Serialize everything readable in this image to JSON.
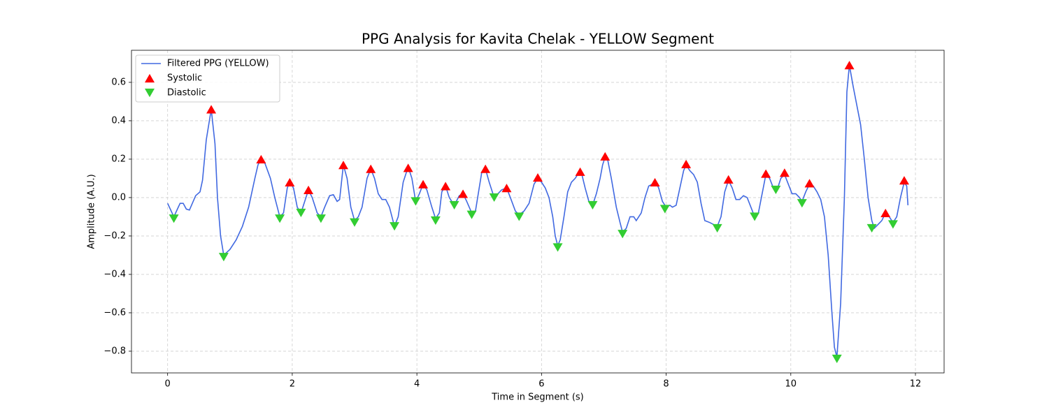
{
  "chart_data": {
    "type": "line",
    "title": "PPG Analysis for Kavita Chelak - YELLOW Segment",
    "xlabel": "Time in Segment (s)",
    "ylabel": "Amplitude (A.U.)",
    "xlim": [
      -0.58,
      12.46
    ],
    "ylim": [
      -0.913,
      0.767
    ],
    "xticks": [
      0,
      2,
      4,
      6,
      8,
      10,
      12
    ],
    "yticks": [
      {
        "value": -0.8,
        "label": "−0.8"
      },
      {
        "value": -0.6,
        "label": "−0.6"
      },
      {
        "value": -0.4,
        "label": "−0.4"
      },
      {
        "value": -0.2,
        "label": "−0.2"
      },
      {
        "value": 0,
        "label": "0.0"
      },
      0.2,
      0.4,
      0.6
    ],
    "grid": true,
    "legend": "upper left",
    "series": [
      {
        "name": "Filtered PPG (YELLOW)",
        "type": "line",
        "color": "#4169e1",
        "x": [
          0,
          0.1,
          0.2,
          0.25,
          0.3,
          0.35,
          0.45,
          0.52,
          0.56,
          0.62,
          0.7,
          0.76,
          0.8,
          0.85,
          0.9,
          1.0,
          1.1,
          1.2,
          1.3,
          1.4,
          1.45,
          1.5,
          1.56,
          1.65,
          1.72,
          1.8,
          1.86,
          1.92,
          1.96,
          2.02,
          2.08,
          2.14,
          2.2,
          2.26,
          2.32,
          2.4,
          2.46,
          2.52,
          2.6,
          2.66,
          2.72,
          2.76,
          2.82,
          2.88,
          2.94,
          3.0,
          3.06,
          3.12,
          3.2,
          3.26,
          3.32,
          3.38,
          3.44,
          3.5,
          3.56,
          3.64,
          3.7,
          3.78,
          3.86,
          3.92,
          3.98,
          4.04,
          4.1,
          4.16,
          4.24,
          4.3,
          4.36,
          4.4,
          4.46,
          4.52,
          4.6,
          4.68,
          4.74,
          4.8,
          4.88,
          4.94,
          5.0,
          5.04,
          5.1,
          5.16,
          5.24,
          5.3,
          5.36,
          5.44,
          5.5,
          5.58,
          5.64,
          5.72,
          5.8,
          5.88,
          5.94,
          6.0,
          6.06,
          6.12,
          6.18,
          6.22,
          6.26,
          6.3,
          6.36,
          6.42,
          6.48,
          6.54,
          6.6,
          6.64,
          6.7,
          6.76,
          6.82,
          6.88,
          6.94,
          6.98,
          7.02,
          7.06,
          7.12,
          7.2,
          7.26,
          7.3,
          7.36,
          7.42,
          7.48,
          7.52,
          7.6,
          7.66,
          7.72,
          7.78,
          7.84,
          7.88,
          7.94,
          8.0,
          8.06,
          8.1,
          8.16,
          8.22,
          8.28,
          8.32,
          8.38,
          8.44,
          8.5,
          8.56,
          8.62,
          8.7,
          8.76,
          8.82,
          8.88,
          8.94,
          9.0,
          9.06,
          9.12,
          9.18,
          9.24,
          9.3,
          9.36,
          9.42,
          9.48,
          9.54,
          9.6,
          9.66,
          9.72,
          9.78,
          9.84,
          9.9,
          9.96,
          10.02,
          10.08,
          10.14,
          10.18,
          10.24,
          10.3,
          10.36,
          10.42,
          10.48,
          10.54,
          10.6,
          10.66,
          10.7,
          10.74,
          10.8,
          10.86,
          10.9,
          10.94,
          11.0,
          11.06,
          11.12,
          11.18,
          11.24,
          11.3,
          11.34,
          11.4,
          11.46,
          11.52,
          11.58,
          11.64,
          11.7,
          11.76,
          11.82,
          11.86,
          11.88
        ],
        "values": [
          -0.03,
          -0.1,
          -0.03,
          -0.03,
          -0.06,
          -0.065,
          0.01,
          0.03,
          0.09,
          0.3,
          0.46,
          0.28,
          0.0,
          -0.2,
          -0.3,
          -0.27,
          -0.22,
          -0.15,
          -0.05,
          0.1,
          0.17,
          0.2,
          0.18,
          0.1,
          0.0,
          -0.1,
          -0.08,
          0.05,
          0.08,
          0.05,
          -0.05,
          -0.08,
          -0.02,
          0.04,
          0.0,
          -0.08,
          -0.1,
          -0.05,
          0.01,
          0.015,
          -0.02,
          -0.01,
          0.17,
          0.1,
          -0.05,
          -0.12,
          -0.1,
          -0.05,
          0.1,
          0.15,
          0.1,
          0.02,
          -0.01,
          -0.01,
          -0.05,
          -0.15,
          -0.1,
          0.08,
          0.16,
          0.1,
          -0.02,
          0.02,
          0.07,
          0.04,
          -0.05,
          -0.11,
          -0.08,
          0.03,
          0.06,
          0.0,
          -0.04,
          0.01,
          0.02,
          -0.02,
          -0.08,
          -0.07,
          0.05,
          0.13,
          0.15,
          0.08,
          0.0,
          0.02,
          0.04,
          0.05,
          0.0,
          -0.07,
          -0.09,
          -0.07,
          -0.03,
          0.07,
          0.1,
          0.08,
          0.05,
          0.0,
          -0.1,
          -0.2,
          -0.25,
          -0.22,
          -0.1,
          0.03,
          0.08,
          0.1,
          0.13,
          0.13,
          0.05,
          -0.02,
          -0.04,
          0.02,
          0.1,
          0.17,
          0.21,
          0.2,
          0.1,
          -0.05,
          -0.13,
          -0.18,
          -0.16,
          -0.1,
          -0.1,
          -0.12,
          -0.08,
          0.0,
          0.06,
          0.07,
          0.075,
          0.05,
          -0.02,
          -0.05,
          -0.04,
          -0.05,
          -0.04,
          0.05,
          0.14,
          0.17,
          0.14,
          0.12,
          0.08,
          -0.03,
          -0.12,
          -0.13,
          -0.14,
          -0.15,
          -0.1,
          0.03,
          0.09,
          0.05,
          -0.01,
          -0.01,
          0.01,
          0.0,
          -0.05,
          -0.1,
          -0.08,
          0.02,
          0.12,
          0.1,
          0.05,
          0.04,
          0.1,
          0.12,
          0.07,
          0.02,
          0.02,
          0.0,
          -0.02,
          0.03,
          0.07,
          0.06,
          0.03,
          -0.01,
          -0.1,
          -0.3,
          -0.6,
          -0.78,
          -0.83,
          -0.55,
          0.0,
          0.55,
          0.69,
          0.58,
          0.48,
          0.38,
          0.2,
          0.0,
          -0.12,
          -0.16,
          -0.14,
          -0.12,
          -0.08,
          -0.1,
          -0.13,
          -0.1,
          0.0,
          0.08,
          0.06,
          -0.04
        ]
      },
      {
        "name": "Systolic",
        "type": "scatter",
        "marker": "triangle-up",
        "color": "#ff0000",
        "x": [
          0.7,
          1.5,
          1.96,
          2.26,
          2.82,
          3.26,
          3.86,
          4.1,
          4.46,
          4.74,
          5.1,
          5.44,
          5.94,
          6.62,
          7.02,
          7.82,
          8.32,
          9.0,
          9.6,
          9.9,
          10.3,
          10.94,
          11.52,
          11.82
        ],
        "values": [
          0.46,
          0.2,
          0.08,
          0.04,
          0.17,
          0.15,
          0.155,
          0.07,
          0.06,
          0.02,
          0.15,
          0.05,
          0.105,
          0.135,
          0.215,
          0.08,
          0.175,
          0.095,
          0.125,
          0.13,
          0.075,
          0.69,
          -0.08,
          0.09
        ]
      },
      {
        "name": "Diastolic",
        "type": "scatter",
        "marker": "triangle-down",
        "color": "#32cd32",
        "x": [
          0.1,
          0.9,
          1.8,
          2.14,
          2.46,
          3.0,
          3.64,
          3.98,
          4.3,
          4.6,
          4.88,
          5.24,
          5.64,
          6.26,
          6.82,
          7.3,
          7.98,
          8.82,
          9.42,
          9.76,
          10.18,
          10.74,
          11.3,
          11.64
        ],
        "values": [
          -0.11,
          -0.31,
          -0.11,
          -0.08,
          -0.11,
          -0.13,
          -0.15,
          -0.02,
          -0.12,
          -0.04,
          -0.09,
          0.0,
          -0.1,
          -0.26,
          -0.04,
          -0.19,
          -0.06,
          -0.16,
          -0.1,
          0.04,
          -0.03,
          -0.84,
          -0.16,
          -0.14
        ]
      }
    ]
  }
}
